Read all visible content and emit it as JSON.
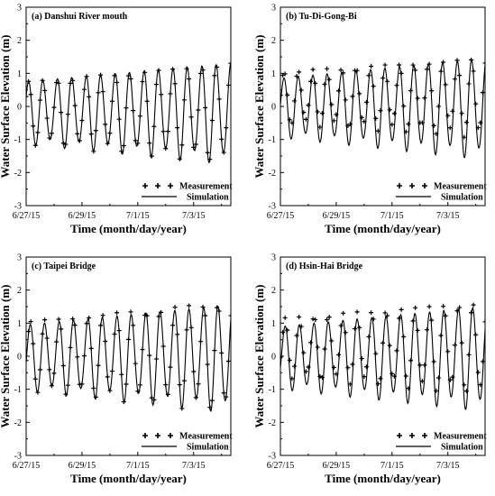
{
  "figure": {
    "background": "#ffffff"
  },
  "chart_data": [
    {
      "type": "line",
      "title": "(a) Danshui River mouth",
      "xlabel": "Time (month/day/year)",
      "ylabel": "Water Surface Elevation (m)",
      "xlim": [
        "6/27/15 00:00",
        "7/4/15 08:00"
      ],
      "ylim": [
        -3,
        3
      ],
      "xticks": [
        "6/27/15",
        "6/29/15",
        "7/1/15",
        "7/3/15"
      ],
      "yticks": [
        -3,
        -2,
        -1,
        0,
        1,
        2,
        3
      ],
      "legend": {
        "position": "bottom-right",
        "entries": [
          "Measurement",
          "Simulation"
        ]
      },
      "series": [
        {
          "name": "Measurement",
          "marker": "plus",
          "color": "#000000",
          "wave": {
            "period_h": 12.42,
            "mean_m": -0.15,
            "amp_start_m": 0.9,
            "amp_end_m": 1.45,
            "peak_time": "6/27/15 02:00"
          }
        },
        {
          "name": "Simulation",
          "style": "solid",
          "color": "#000000",
          "wave": {
            "period_h": 12.42,
            "mean_m": -0.15,
            "amp_start_m": 0.9,
            "amp_end_m": 1.45,
            "peak_time": "6/27/15 02:00"
          }
        }
      ]
    },
    {
      "type": "line",
      "title": "(b) Tu-Di-Gong-Bi",
      "xlabel": "Time (month/day/year)",
      "ylabel": "Water Surface Elevation (m)",
      "xlim": [
        "6/27/15 00:00",
        "7/4/15 08:00"
      ],
      "ylim": [
        -3,
        3
      ],
      "xticks": [
        "6/27/15",
        "6/29/15",
        "7/1/15",
        "7/3/15"
      ],
      "yticks": [
        -3,
        -2,
        -1,
        0,
        1,
        2,
        3
      ],
      "legend": {
        "position": "bottom-right",
        "entries": [
          "Measurement",
          "Simulation"
        ]
      },
      "series": [
        {
          "name": "Measurement",
          "marker": "plus",
          "color": "#000000",
          "wave": {
            "period_h": 12.42,
            "mean_m": 0.3,
            "amp_start_m": 0.75,
            "amp_end_m": 1.15,
            "peak_time": "6/27/15 03:00"
          }
        },
        {
          "name": "Simulation",
          "style": "solid",
          "color": "#000000",
          "wave": {
            "period_h": 12.42,
            "mean_m": 0.0,
            "amp_start_m": 0.85,
            "amp_end_m": 1.45,
            "peak_time": "6/27/15 03:00"
          }
        }
      ]
    },
    {
      "type": "line",
      "title": "(c) Taipei Bridge",
      "xlabel": "Time (month/day/year)",
      "ylabel": "Water Surface Elevation (m)",
      "xlim": [
        "6/27/15 00:00",
        "7/4/15 08:00"
      ],
      "ylim": [
        -3,
        3
      ],
      "xticks": [
        "6/27/15",
        "6/29/15",
        "7/1/15",
        "7/3/15"
      ],
      "yticks": [
        -3,
        -2,
        -1,
        0,
        1,
        2,
        3
      ],
      "legend": {
        "position": "bottom-right",
        "entries": [
          "Measurement",
          "Simulation"
        ]
      },
      "series": [
        {
          "name": "Measurement",
          "marker": "plus",
          "color": "#000000",
          "wave": {
            "period_h": 12.42,
            "mean_m": 0.05,
            "amp_start_m": 1.0,
            "amp_end_m": 1.6,
            "peak_time": "6/27/15 03:30"
          }
        },
        {
          "name": "Simulation",
          "style": "solid",
          "color": "#000000",
          "wave": {
            "period_h": 12.42,
            "mean_m": 0.0,
            "amp_start_m": 0.95,
            "amp_end_m": 1.55,
            "peak_time": "6/27/15 03:30"
          }
        }
      ]
    },
    {
      "type": "line",
      "title": "(d) Hsin-Hai Bridge",
      "xlabel": "Time (month/day/year)",
      "ylabel": "Water Surface Elevation (m)",
      "xlim": [
        "6/27/15 00:00",
        "7/4/15 08:00"
      ],
      "ylim": [
        -3,
        3
      ],
      "xticks": [
        "6/27/15",
        "6/29/15",
        "7/1/15",
        "7/3/15"
      ],
      "yticks": [
        -3,
        -2,
        -1,
        0,
        1,
        2,
        3
      ],
      "legend": {
        "position": "bottom-right",
        "entries": [
          "Measurement",
          "Simulation"
        ]
      },
      "series": [
        {
          "name": "Measurement",
          "marker": "plus",
          "color": "#000000",
          "wave": {
            "period_h": 12.42,
            "mean_m": 0.3,
            "amp_start_m": 0.85,
            "amp_end_m": 1.35,
            "peak_time": "6/27/15 04:00"
          }
        },
        {
          "name": "Simulation",
          "style": "solid",
          "color": "#000000",
          "wave": {
            "period_h": 12.42,
            "mean_m": 0.0,
            "amp_start_m": 0.9,
            "amp_end_m": 1.5,
            "peak_time": "6/27/15 04:00"
          }
        }
      ]
    }
  ]
}
